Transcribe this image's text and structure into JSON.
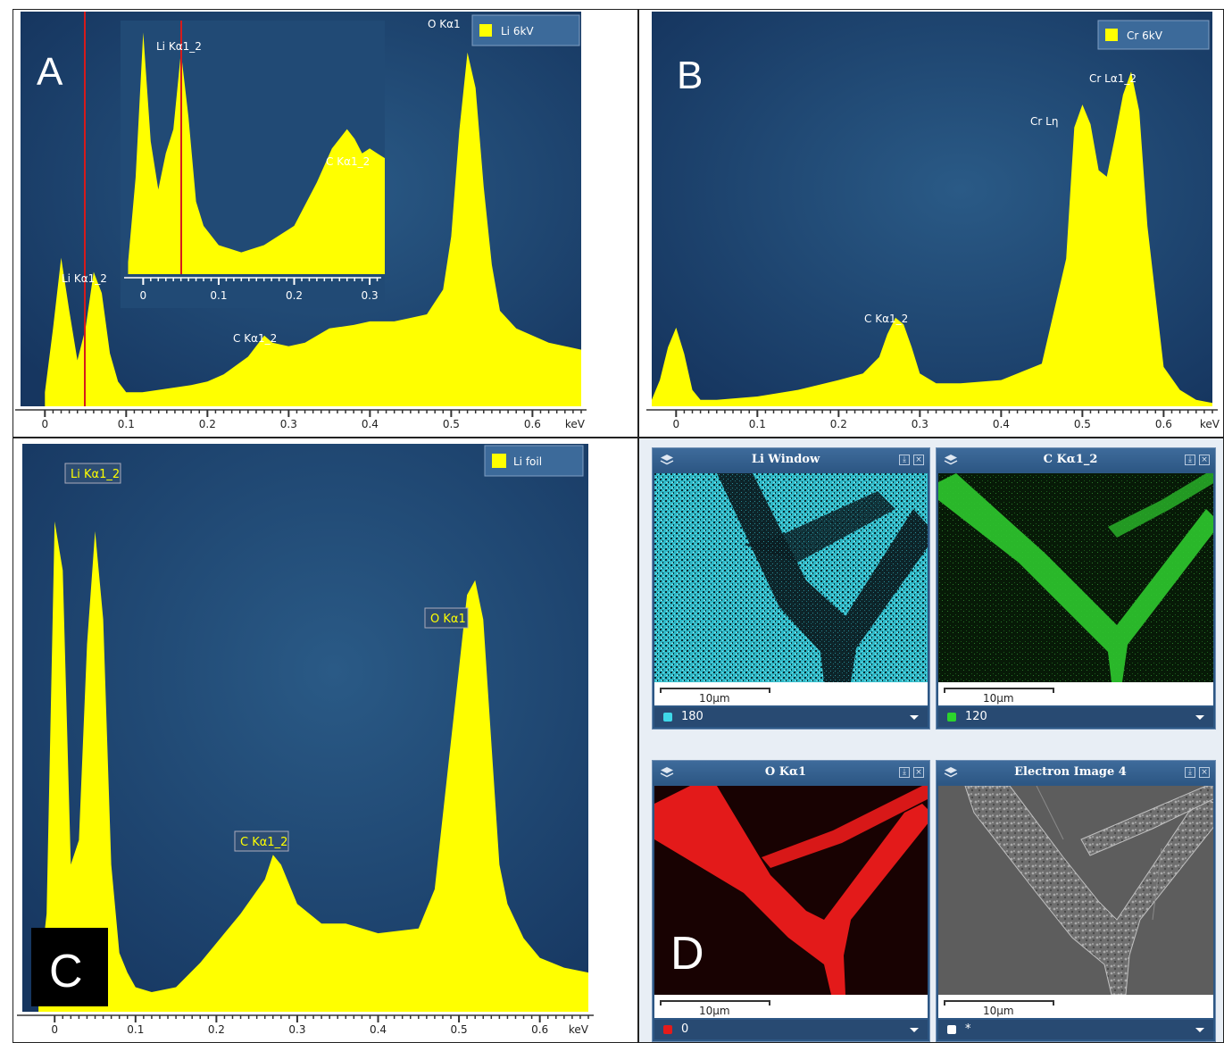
{
  "panels": {
    "A": {
      "letter": "A",
      "legend": "Li 6kV",
      "unit": "keV",
      "ticks": [
        "0",
        "0.1",
        "0.2",
        "0.3",
        "0.4",
        "0.5",
        "0.6"
      ],
      "labels": [
        "Li Kα1_2",
        "C Kα1_2",
        "O Kα1"
      ],
      "inset": {
        "ticks": [
          "0",
          "0.1",
          "0.2",
          "0.3"
        ],
        "labels": [
          "Li Kα1_2",
          "C Kα1_2"
        ]
      }
    },
    "B": {
      "letter": "B",
      "legend": "Cr 6kV",
      "unit": "keV",
      "ticks": [
        "0",
        "0.1",
        "0.2",
        "0.3",
        "0.4",
        "0.5",
        "0.6"
      ],
      "labels": [
        "C Kα1_2",
        "Cr Lη",
        "Cr Lα1_2"
      ]
    },
    "C": {
      "letter": "C",
      "legend": "Li foil",
      "unit": "keV",
      "ticks": [
        "0",
        "0.1",
        "0.2",
        "0.3",
        "0.4",
        "0.5",
        "0.6"
      ],
      "labels": [
        "Li Kα1_2",
        "C Kα1_2",
        "O Kα1"
      ]
    },
    "D": {
      "letter": "D",
      "maps": [
        {
          "title": "Li Window",
          "scale": "10μm",
          "value": "180",
          "color": "#3fd8e8"
        },
        {
          "title": "C Kα1_2",
          "scale": "10μm",
          "value": "120",
          "color": "#2cd42c"
        },
        {
          "title": "O Kα1",
          "scale": "10μm",
          "value": "0",
          "color": "#e41b1b"
        },
        {
          "title": "Electron Image 4",
          "scale": "10μm",
          "value": "*",
          "color": "#ffffff"
        }
      ]
    }
  },
  "colors": {
    "bg": "#163660",
    "bg_center": "#2a5a86",
    "fill": "#ffff00",
    "marker": "#d61b1b"
  },
  "chart_data": [
    {
      "type": "area",
      "series": [
        {
          "name": "Li 6kV",
          "x": [
            0,
            0.01,
            0.02,
            0.03,
            0.04,
            0.05,
            0.06,
            0.07,
            0.08,
            0.09,
            0.1,
            0.12,
            0.15,
            0.18,
            0.2,
            0.22,
            0.25,
            0.27,
            0.28,
            0.3,
            0.32,
            0.35,
            0.38,
            0.4,
            0.43,
            0.45,
            0.47,
            0.49,
            0.5,
            0.51,
            0.52,
            0.53,
            0.54,
            0.55,
            0.56,
            0.58,
            0.6,
            0.62,
            0.66
          ],
          "y": [
            4,
            22,
            42,
            27,
            13,
            22,
            38,
            32,
            15,
            7,
            4,
            4,
            5,
            6,
            7,
            9,
            14,
            20,
            18,
            17,
            18,
            22,
            23,
            24,
            24,
            25,
            26,
            33,
            48,
            78,
            100,
            90,
            62,
            40,
            27,
            22,
            20,
            18,
            16
          ]
        }
      ],
      "xlabel": "keV",
      "xlim": [
        -0.03,
        0.66
      ],
      "ylim": [
        0,
        104
      ]
    },
    {
      "type": "area",
      "series": [
        {
          "name": "Li 6kV (inset)",
          "x": [
            -0.02,
            -0.01,
            0,
            0.01,
            0.02,
            0.03,
            0.04,
            0.05,
            0.06,
            0.07,
            0.08,
            0.1,
            0.13,
            0.16,
            0.2,
            0.23,
            0.25,
            0.27,
            0.28,
            0.29,
            0.3,
            0.31,
            0.32
          ],
          "y": [
            5,
            40,
            100,
            55,
            35,
            50,
            60,
            92,
            65,
            30,
            20,
            12,
            9,
            12,
            20,
            38,
            52,
            60,
            56,
            50,
            52,
            50,
            48
          ]
        }
      ],
      "xlabel": "",
      "xlim": [
        -0.03,
        0.32
      ],
      "ylim": [
        0,
        102
      ]
    },
    {
      "type": "area",
      "series": [
        {
          "name": "Cr 6kV",
          "x": [
            -0.03,
            -0.02,
            -0.01,
            0,
            0.01,
            0.02,
            0.03,
            0.05,
            0.1,
            0.15,
            0.2,
            0.23,
            0.25,
            0.26,
            0.27,
            0.28,
            0.29,
            0.3,
            0.32,
            0.35,
            0.4,
            0.45,
            0.48,
            0.49,
            0.5,
            0.51,
            0.52,
            0.53,
            0.54,
            0.55,
            0.56,
            0.57,
            0.58,
            0.6,
            0.62,
            0.64,
            0.66
          ],
          "y": [
            2,
            8,
            18,
            24,
            16,
            5,
            2,
            2,
            3,
            5,
            8,
            10,
            15,
            22,
            27,
            25,
            18,
            10,
            7,
            7,
            8,
            13,
            45,
            85,
            92,
            86,
            72,
            70,
            82,
            95,
            102,
            90,
            55,
            12,
            5,
            2,
            1
          ]
        }
      ],
      "xlabel": "keV",
      "xlim": [
        -0.03,
        0.66
      ],
      "ylim": [
        0,
        110
      ]
    },
    {
      "type": "area",
      "series": [
        {
          "name": "Li foil",
          "x": [
            -0.02,
            -0.01,
            0,
            0.01,
            0.02,
            0.03,
            0.04,
            0.05,
            0.06,
            0.07,
            0.08,
            0.09,
            0.1,
            0.12,
            0.15,
            0.18,
            0.2,
            0.23,
            0.26,
            0.27,
            0.28,
            0.3,
            0.33,
            0.36,
            0.4,
            0.45,
            0.47,
            0.49,
            0.5,
            0.51,
            0.52,
            0.53,
            0.54,
            0.55,
            0.56,
            0.58,
            0.6,
            0.63,
            0.66
          ],
          "y": [
            5,
            20,
            100,
            90,
            30,
            35,
            75,
            98,
            80,
            30,
            12,
            8,
            5,
            4,
            5,
            10,
            14,
            20,
            27,
            32,
            30,
            22,
            18,
            18,
            16,
            17,
            25,
            55,
            70,
            85,
            88,
            80,
            55,
            30,
            22,
            15,
            11,
            9,
            8
          ]
        }
      ],
      "xlabel": "keV",
      "xlim": [
        -0.04,
        0.66
      ],
      "ylim": [
        0,
        110
      ]
    }
  ]
}
